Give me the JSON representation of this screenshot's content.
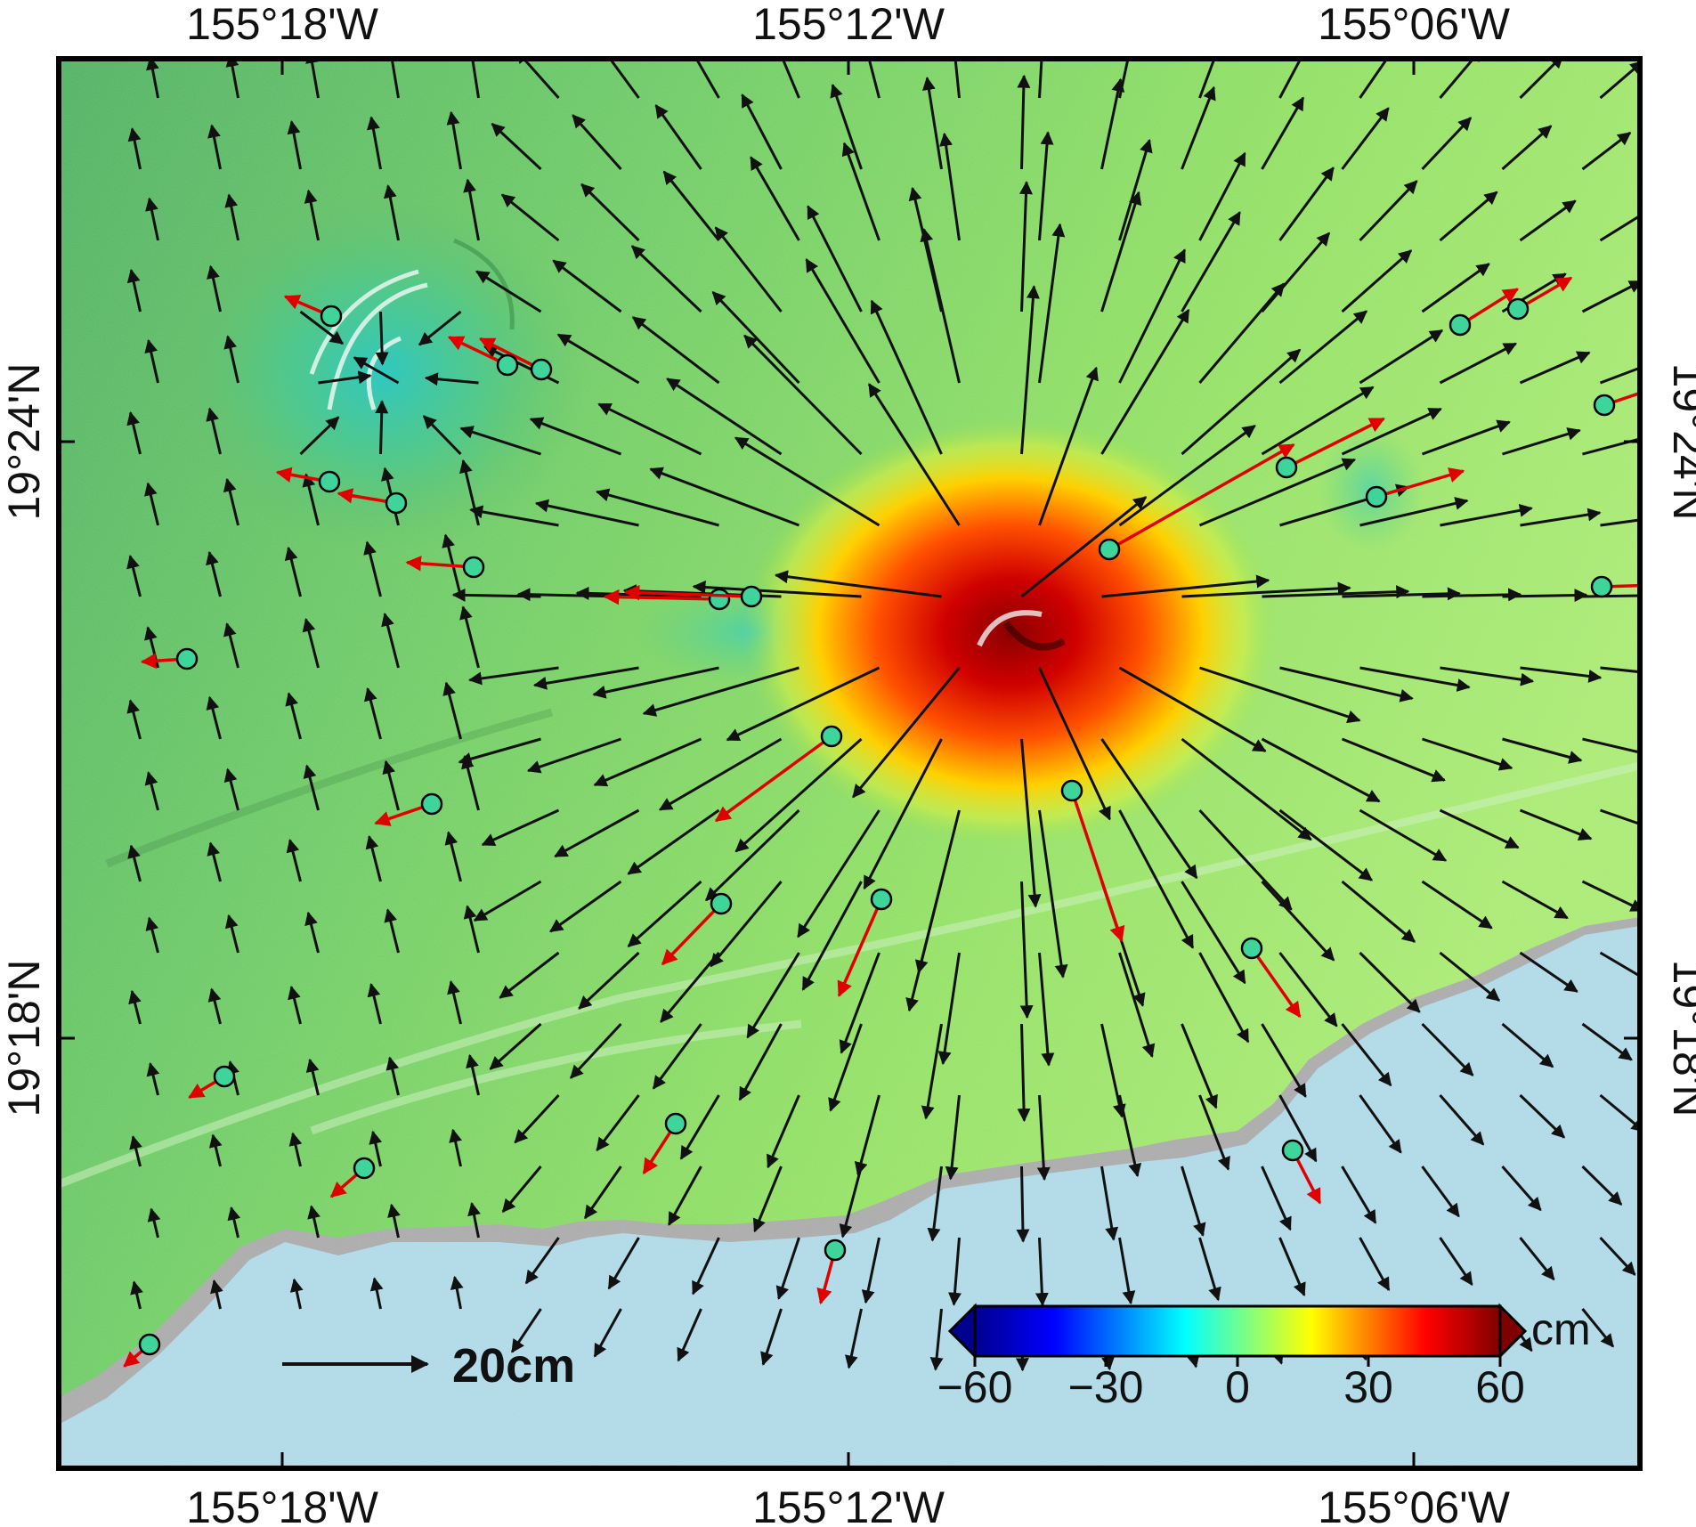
{
  "map": {
    "axes": {
      "lon_ticks": [
        "155°18'W",
        "155°12'W",
        "155°06'W"
      ],
      "lat_ticks": [
        "19°24'N",
        "19°18'N"
      ]
    },
    "scale_arrow": {
      "label": "20cm"
    },
    "colorbar": {
      "unit": "cm",
      "tick_labels": [
        "−60",
        "−30",
        "0",
        "30",
        "60"
      ],
      "range": [
        -60,
        60
      ],
      "colors": [
        "#00008f",
        "#0000ff",
        "#00ffff",
        "#7fff7f",
        "#ffff00",
        "#ff0000",
        "#7f0000"
      ]
    },
    "colors": {
      "land_base": "#7fd86a",
      "ocean": "#add8e6",
      "coast_shade": "#a8a8a8",
      "uplift": "#b40000",
      "model_arrow": "#111111",
      "observed_arrow": "#e00000",
      "station_fill": "#3fd49a"
    },
    "icons": {
      "observed": "red-arrow",
      "model": "black-arrow",
      "station": "circle-marker"
    }
  }
}
